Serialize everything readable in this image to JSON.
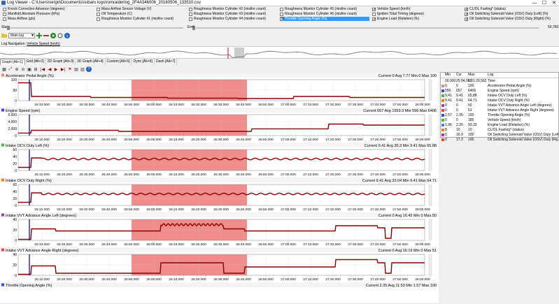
{
  "window": {
    "title": "Log Viewer - C:\\Users\\sergo\\Documents\\subaru logs\\romraiderlog_2F4A346006_20160506_133510.csv",
    "minimize": "—",
    "maximize": "☐",
    "close": "✕"
  },
  "checkbox_columns": [
    [
      {
        "label": "Knock Correction Advance (degrees)",
        "checked": false,
        "selected": false
      },
      {
        "label": "Manifold Absolute Pressure (kPa)",
        "checked": false,
        "selected": false
      },
      {
        "label": "Mass Airflow (g/s)",
        "checked": false,
        "selected": false
      }
    ],
    [
      {
        "label": "Mass Airflow Sensor Voltage (V)",
        "checked": false,
        "selected": false
      },
      {
        "label": "Oil Temperature (C)",
        "checked": false,
        "selected": false
      },
      {
        "label": "Roughness Monitor Cylinder #1 (misfire count)",
        "checked": false,
        "selected": false
      }
    ],
    [
      {
        "label": "Roughness Monitor Cylinder #2 (misfire count)",
        "checked": false,
        "selected": false
      },
      {
        "label": "Roughness Monitor Cylinder #3 (misfire count)",
        "checked": false,
        "selected": false
      },
      {
        "label": "Roughness Monitor Cylinder #4 (misfire count)",
        "checked": false,
        "selected": false
      }
    ],
    [
      {
        "label": "Roughness Monitor Cylinder #5 (misfire count)",
        "checked": false,
        "selected": false
      },
      {
        "label": "Roughness Monitor Cylinder #6 (misfire count)",
        "checked": false,
        "selected": false
      },
      {
        "label": "Throttle Opening Angle (%)",
        "checked": true,
        "selected": true
      }
    ],
    [
      {
        "label": "Vehicle Speed (km/h)",
        "checked": true,
        "selected": false
      },
      {
        "label": "Ignition Total Timing (degrees)",
        "checked": false,
        "selected": false
      },
      {
        "label": "Engine Load (Relative) (%)",
        "checked": true,
        "selected": false
      }
    ],
    [
      {
        "label": "CL/OL Fueling* (status)",
        "checked": true,
        "selected": false
      },
      {
        "label": "Oil Switching Solenoid Valve (OSV) Duty (Left) (%)",
        "checked": true,
        "selected": false
      },
      {
        "label": "Oil Switching Solenoid Valve (OSV) Duty (Right) (%)",
        "checked": true,
        "selected": false
      }
    ]
  ],
  "range": {
    "start_label": "Start",
    "end_label": "End",
    "end_value": "50,760"
  },
  "toolbar": {
    "combo_value": "Main log"
  },
  "log_navigation": {
    "label": "Log Navigation:",
    "channel": "Vehicle Speed (km/h)"
  },
  "tabs": [
    "Graph [Alt+1]",
    "Grid [Alt+2]",
    "2D Graph [Alt+3]",
    "3D Graph [Alt+4]",
    "Custom [Alt+5]",
    "Dyno [Alt+6]",
    "Dash [Alt+7]"
  ],
  "graph_icons": [
    "graph-settings-icon",
    "zoom-all-icon",
    "zoom-in-icon",
    "zoom-out-icon",
    "zoom-fit-icon",
    "zoom-x-icon",
    "first-icon",
    "prev-icon",
    "next-icon",
    "last-icon",
    "marker-icon",
    "layout-icon",
    "export-icon",
    "help-icon"
  ],
  "time_ticks": [
    "25:10.000",
    "25:20.000",
    "25:30.000",
    "25:40.000",
    "25:50.000",
    "26:00.000",
    "26:10.000",
    "26:20.000",
    "26:30.000",
    "26:40.000",
    "26:50.000",
    "27:00.000",
    "27:10.000",
    "27:20.000",
    "27:30.000",
    "27:40.000",
    "27:50.000",
    "28:00.000"
  ],
  "colors": {
    "highlight": "#f08080",
    "series": "#8b0000",
    "cursor": "#00008b"
  },
  "graphs": [
    {
      "title": "Accelerator Pedal Angle (%)",
      "stats": "Current 0 Avg 7.77 Min 0 Max 100",
      "yticks": [
        "0",
        "50",
        "100"
      ],
      "swatch": "#ff8080"
    },
    {
      "title": "Engine Speed (rpm)",
      "stats": "Current 657 Avg 1559.3 Min 556 Max 6406",
      "yticks": [
        "0",
        "2,000",
        "4,000",
        "6,000"
      ],
      "swatch": "#4040ff"
    },
    {
      "title": "Intake OCV Duty Left (%)",
      "stats": "Current 9.41 Avg 30.3 Min 9.41 Max 65.88",
      "yticks": [
        "0",
        "20",
        "40",
        "60"
      ],
      "swatch": "#40c040"
    },
    {
      "title": "Intake OCV Duty Right (%)",
      "stats": "Current 9.41 Avg 32.04 Min 9.41 Max 64.71",
      "yticks": [
        "0",
        "20",
        "40",
        "60"
      ],
      "swatch": "#ff8000"
    },
    {
      "title": "Intake VVT Advance Angle Left (degrees)",
      "stats": "Current 0 Avg 16.42 Min 0 Max 50",
      "yticks": [
        "0",
        "20",
        "40"
      ],
      "swatch": "#a040a0"
    },
    {
      "title": "Intake VVT Advance Angle Right (degrees)",
      "stats": "Current 0 Avg 16.19 Min 0 Max 51",
      "yticks": [
        "0",
        "20",
        "40"
      ],
      "swatch": "#ff4040"
    },
    {
      "title": "Throttle Opening Angle (%)",
      "stats": "Current 2.35 Avg 11.53 Min 1.57 Max 100",
      "yticks": [],
      "swatch": "#4040ff"
    }
  ],
  "value_panel": {
    "headers": [
      "Min",
      "Cur",
      "Max",
      "Log"
    ],
    "rows": [
      {
        "min": "00.000",
        "cur": "25:04.062",
        "max": "1:01:29.562",
        "log": "Time",
        "color": ""
      },
      {
        "min": "0",
        "cur": "0",
        "max": "100",
        "log": "Accelerator Pedal Angle (%)",
        "color": "#ff8080"
      },
      {
        "min": "556",
        "cur": "657",
        "max": "6406",
        "log": "Engine Speed (rpm)",
        "color": "#4040ff"
      },
      {
        "min": "9.41",
        "cur": "9.41",
        "max": "65.88",
        "log": "Intake OCV Duty Left (%)",
        "color": "#40c040"
      },
      {
        "min": "9.41",
        "cur": "9.41",
        "max": "64.71",
        "log": "Intake OCV Duty Right (%)",
        "color": "#ff8000"
      },
      {
        "min": "0",
        "cur": "0",
        "max": "50",
        "log": "Intake VVT Advance Angle Left (degrees)",
        "color": "#a040a0"
      },
      {
        "min": "0",
        "cur": "0",
        "max": "51",
        "log": "Intake VVT Advance Angle Right (degrees)",
        "color": "#ff4040"
      },
      {
        "min": "1.57",
        "cur": "2.35",
        "max": "100",
        "log": "Throttle Opening Angle (%)",
        "color": "#4040ff"
      },
      {
        "min": "0",
        "cur": "0",
        "max": "185",
        "log": "Vehicle Speed (km/h)",
        "color": "#40c040"
      },
      {
        "min": "1.96",
        "cur": "2.35",
        "max": "93.33",
        "log": "Engine Load (Relative) (%)",
        "color": "#4080ff"
      },
      {
        "min": "8",
        "cur": "10",
        "max": "10",
        "log": "CL/OL Fueling* (status)",
        "color": "#ff8000"
      },
      {
        "min": "0",
        "cur": "16.9",
        "max": "100",
        "log": "Oil Switching Solenoid Valve (OSV) Duty (Left) (%)",
        "color": "#a040a0"
      },
      {
        "min": "0",
        "cur": "17.3",
        "max": "100",
        "log": "Oil Switching Solenoid Valve (OSV) Duty (Right) (%)",
        "color": "#ff4040"
      }
    ]
  }
}
